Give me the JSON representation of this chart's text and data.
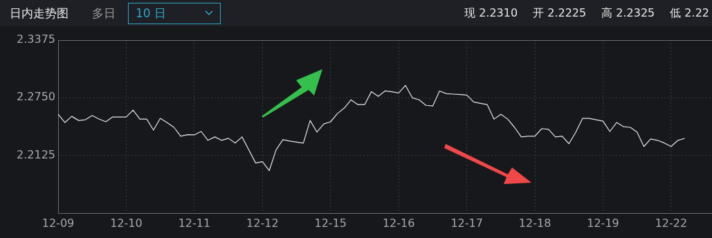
{
  "chart_data": {
    "type": "line",
    "title": "日内走势图",
    "annotations": [
      "多日",
      "10 日",
      "现 2.2310",
      "开 2.2225",
      "高 2.2325",
      "低 2.22"
    ],
    "categories": [
      "12-09",
      null,
      null,
      null,
      null,
      null,
      null,
      null,
      null,
      null,
      "12-10",
      null,
      null,
      null,
      null,
      null,
      null,
      null,
      null,
      null,
      "12-11",
      null,
      null,
      null,
      null,
      null,
      null,
      null,
      null,
      null,
      "12-12",
      null,
      null,
      null,
      null,
      null,
      null,
      null,
      null,
      null,
      "12-15",
      null,
      null,
      null,
      null,
      null,
      null,
      null,
      null,
      null,
      "12-16",
      null,
      null,
      null,
      null,
      null,
      null,
      null,
      null,
      null,
      "12-17",
      null,
      null,
      null,
      null,
      null,
      null,
      null,
      null,
      null,
      "12-18",
      null,
      null,
      null,
      null,
      null,
      null,
      null,
      null,
      null,
      "12-19",
      null,
      null,
      null,
      null,
      null,
      null,
      null,
      null,
      null,
      "12-22",
      null,
      null,
      null,
      null,
      null,
      null
    ],
    "series": [
      {
        "color": "#e6e6e6",
        "values": [
          2.2571,
          2.2482,
          2.2549,
          2.2504,
          2.2512,
          2.2557,
          2.252,
          2.249,
          2.2542,
          2.2542,
          2.2542,
          2.2616,
          2.2519,
          2.2519,
          2.24,
          2.2527,
          2.248,
          2.243,
          2.2333,
          2.235,
          2.2348,
          2.2385,
          2.2289,
          2.2326,
          2.2289,
          2.2311,
          2.2259,
          2.2326,
          2.2185,
          2.2043,
          2.2058,
          2.1961,
          2.2185,
          2.2296,
          2.2281,
          2.227,
          2.2259,
          2.2504,
          2.2378,
          2.2467,
          2.249,
          2.2579,
          2.2638,
          2.2728,
          2.2676,
          2.2676,
          2.2817,
          2.2765,
          2.2824,
          2.2815,
          2.2802,
          2.2884,
          2.275,
          2.2728,
          2.2668,
          2.2661,
          2.2824,
          2.2795,
          2.279,
          2.2785,
          2.278,
          2.2705,
          2.269,
          2.2676,
          2.2519,
          2.2571,
          2.2519,
          2.243,
          2.2326,
          2.2333,
          2.2333,
          2.2415,
          2.2408,
          2.2326,
          2.2333,
          2.2252,
          2.2378,
          2.2527,
          2.2527,
          2.2512,
          2.2497,
          2.2385,
          2.2482,
          2.2437,
          2.243,
          2.2378,
          2.2222,
          2.2304,
          2.2289,
          2.226,
          2.2222,
          2.2289,
          2.231,
          null,
          null,
          null,
          null
        ]
      }
    ],
    "ylim": [
      2.15,
      2.3375
    ],
    "yticks": [
      2.2125,
      {
        "value": 2.275,
        "label": "2.2750"
      },
      2.3375
    ],
    "grid": true,
    "legend": false
  }
}
